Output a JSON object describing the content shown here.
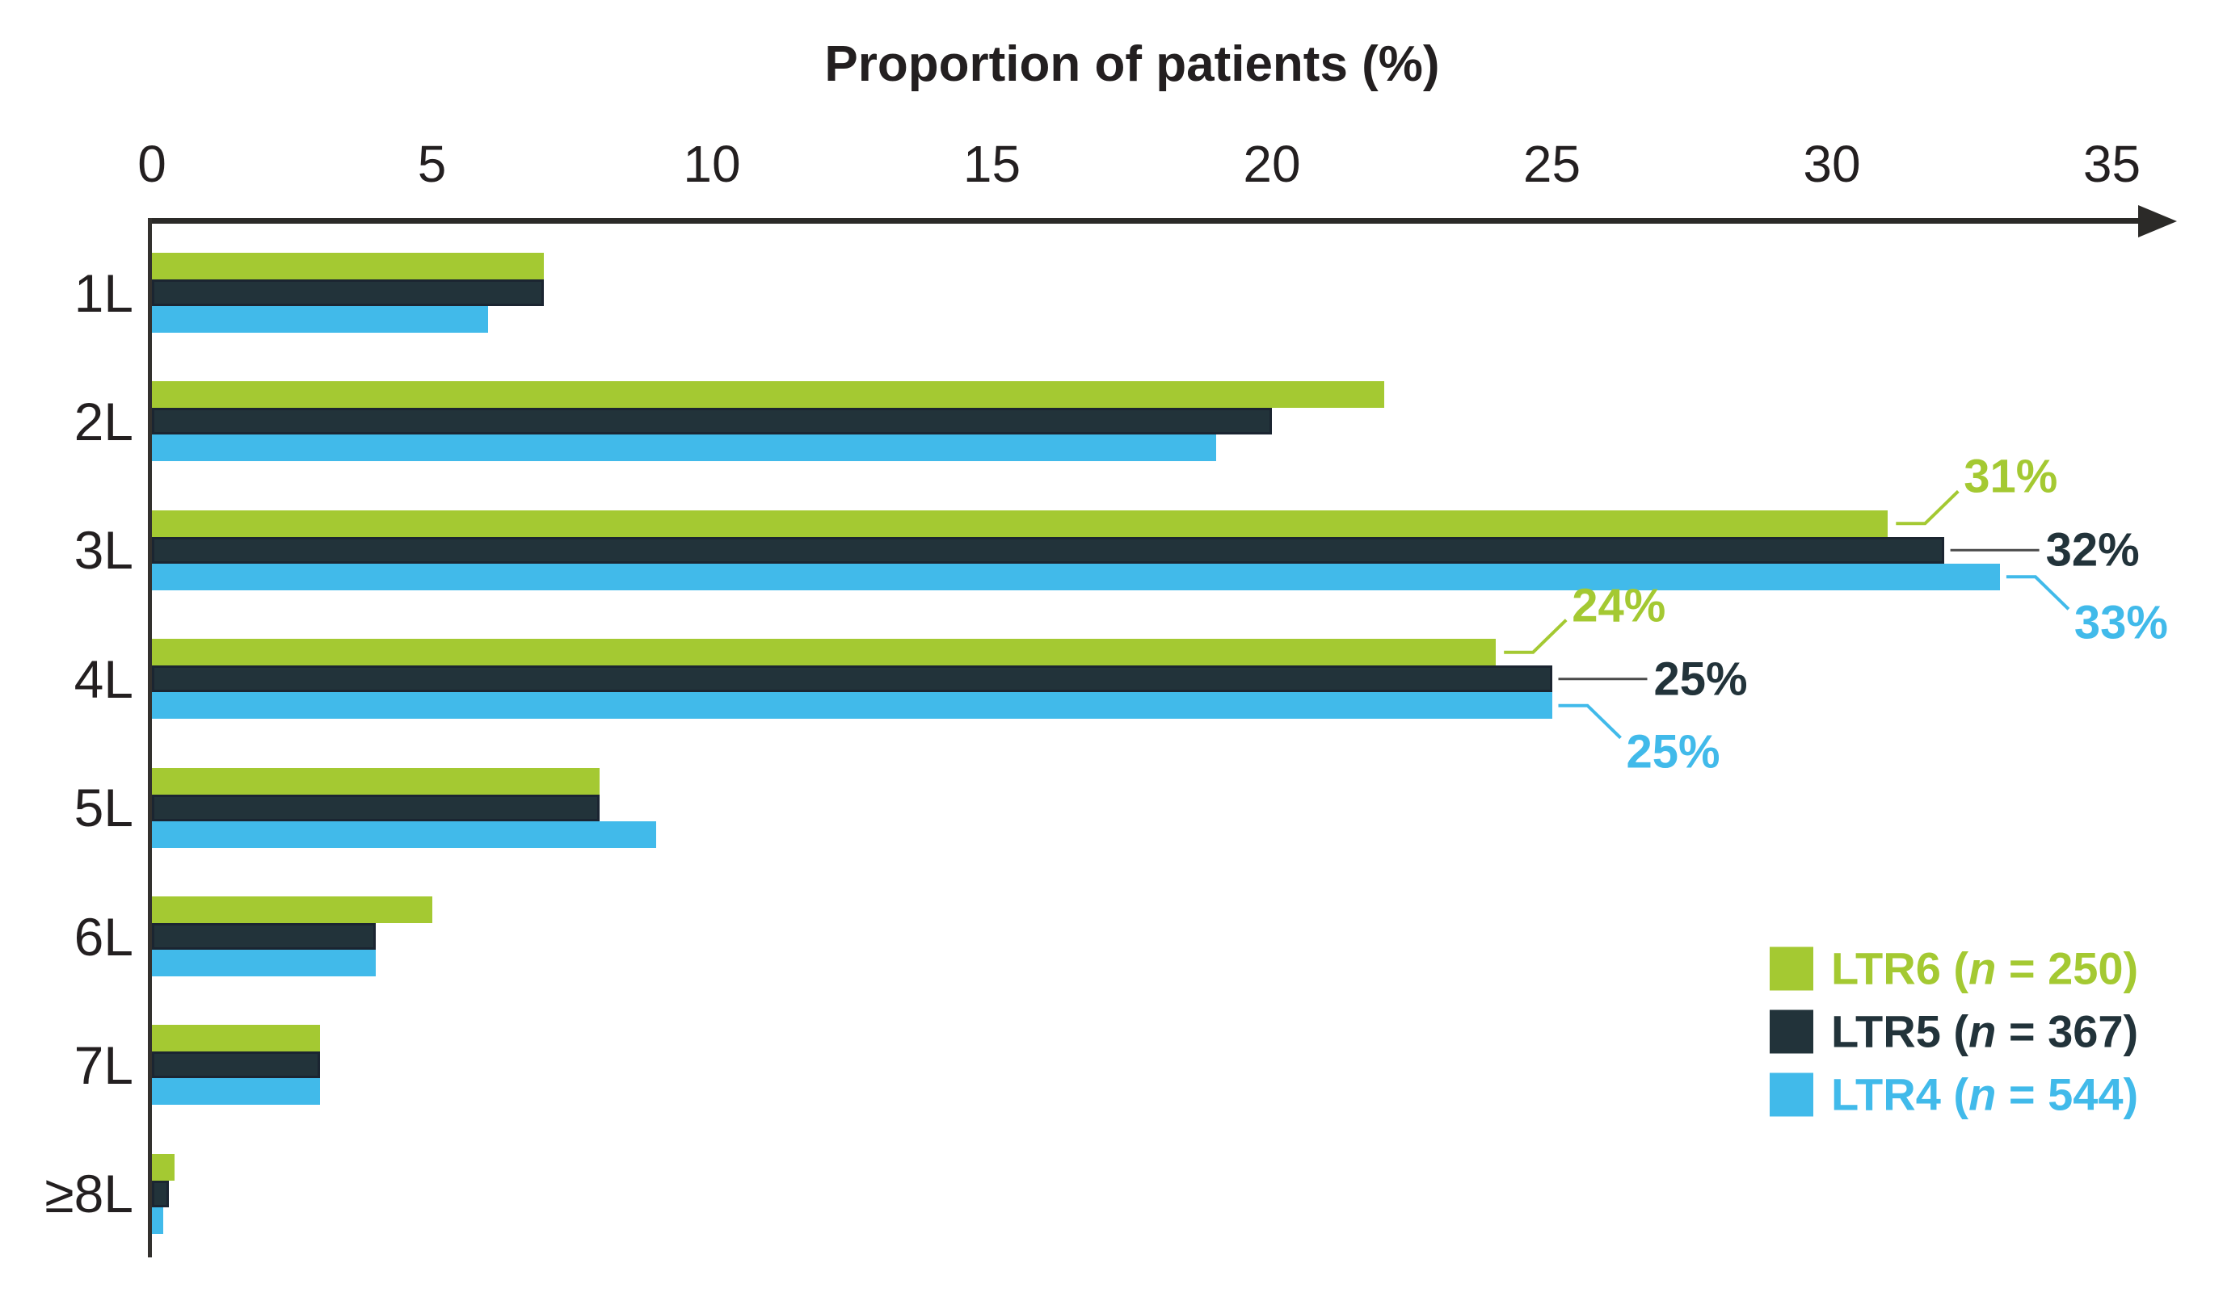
{
  "chart_data": {
    "type": "bar",
    "orientation": "horizontal",
    "title": "Proportion of patients (%)",
    "xlabel": "Proportion of patients (%)",
    "ylabel": "",
    "xlim": [
      0,
      35
    ],
    "xticks": [
      0,
      5,
      10,
      15,
      20,
      25,
      30,
      35
    ],
    "grid": false,
    "axis_arrow": true,
    "legend_position": "right-middle",
    "categories": [
      "1L",
      "2L",
      "3L",
      "4L",
      "5L",
      "6L",
      "7L",
      "≥8L"
    ],
    "series": [
      {
        "name": "LTR6",
        "n": "250",
        "color": "#a4c932",
        "values": [
          7,
          22,
          31,
          24,
          8,
          5,
          3,
          0.4
        ]
      },
      {
        "name": "LTR5",
        "n": "367",
        "color": "#22333a",
        "values": [
          7,
          20,
          32,
          25,
          8,
          4,
          3,
          0.3
        ]
      },
      {
        "name": "LTR4",
        "n": "544",
        "color": "#41baea",
        "values": [
          6,
          19,
          33,
          25,
          9,
          4,
          3,
          0.2
        ]
      }
    ],
    "legend_items": [
      {
        "label": "LTR6",
        "n_prefix": "(",
        "n_symbol": "n",
        "n_equals": " = ",
        "n_value": "250",
        "n_suffix": ")"
      },
      {
        "label": "LTR5",
        "n_prefix": "(",
        "n_symbol": "n",
        "n_equals": " = ",
        "n_value": "367",
        "n_suffix": ")"
      },
      {
        "label": "LTR4",
        "n_prefix": "(",
        "n_symbol": "n",
        "n_equals": " = ",
        "n_value": "544",
        "n_suffix": ")"
      }
    ],
    "callouts": [
      {
        "category": "3L",
        "series": "LTR6",
        "text": "31%"
      },
      {
        "category": "3L",
        "series": "LTR5",
        "text": "32%"
      },
      {
        "category": "3L",
        "series": "LTR4",
        "text": "33%"
      },
      {
        "category": "4L",
        "series": "LTR6",
        "text": "24%"
      },
      {
        "category": "4L",
        "series": "LTR5",
        "text": "25%"
      },
      {
        "category": "4L",
        "series": "LTR4",
        "text": "25%"
      }
    ],
    "colors": {
      "text": "#231f20",
      "axis": "#2b2a28",
      "callout_line_neutral": "#4a4a4a"
    }
  }
}
